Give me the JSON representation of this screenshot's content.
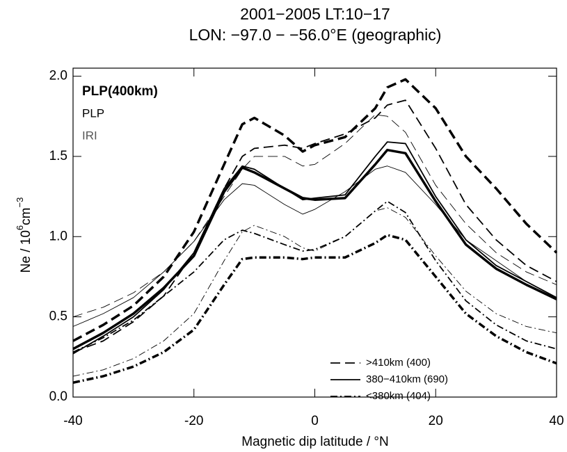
{
  "chart_data": {
    "type": "line",
    "title": "2001−2005   LT:10−17",
    "subtitle": "LON: −97.0 − −56.0°E (geographic)",
    "xlabel": "Magnetic dip latitude / °N",
    "ylabel": [
      "Ne / 10",
      "6",
      "cm",
      "−3"
    ],
    "x": [
      -40,
      -35,
      -30,
      -25,
      -20,
      -15,
      -12,
      -10,
      -5,
      -2,
      0,
      5,
      10,
      12,
      15,
      20,
      25,
      30,
      35,
      40
    ],
    "xlim": [
      -40,
      40
    ],
    "xticks": [
      -40,
      -20,
      0,
      20,
      40
    ],
    "ylim": [
      0,
      2.05
    ],
    "yticks": [
      {
        "value": 0,
        "label": "0.0"
      },
      {
        "value": 0.5,
        "label": "0.5"
      },
      {
        "value": 1,
        "label": "1.0"
      },
      {
        "value": 1.5,
        "label": "1.5"
      },
      {
        "value": 2,
        "label": "2.0"
      }
    ],
    "color": "#000000",
    "weight_legend": [
      {
        "label": "PLP(400km)",
        "width": 3.5,
        "bold": true,
        "color": "#000000"
      },
      {
        "label": "PLP",
        "width": 1.8,
        "bold": false,
        "color": "#000000"
      },
      {
        "label": "IRI",
        "width": 0.9,
        "bold": false,
        "color": "#555555"
      }
    ],
    "style_legend": [
      {
        "label": ">410km (400)",
        "dash": "14 7"
      },
      {
        "label": "380−410km (690)",
        "dash": "none"
      },
      {
        "label": "<380km (404)",
        "dash": "10 4 2 4"
      }
    ],
    "series": [
      {
        "line_style": 0,
        "line_weight": 0,
        "values": [
          0.35,
          0.45,
          0.57,
          0.75,
          1.03,
          1.45,
          1.7,
          1.74,
          1.63,
          1.53,
          1.57,
          1.62,
          1.8,
          1.93,
          1.98,
          1.8,
          1.5,
          1.3,
          1.08,
          0.9
        ]
      },
      {
        "line_style": 0,
        "line_weight": 1,
        "values": [
          0.28,
          0.35,
          0.47,
          0.63,
          0.9,
          1.3,
          1.5,
          1.55,
          1.57,
          1.55,
          1.58,
          1.64,
          1.74,
          1.82,
          1.85,
          1.55,
          1.2,
          0.98,
          0.82,
          0.72
        ]
      },
      {
        "line_style": 0,
        "line_weight": 2,
        "values": [
          0.5,
          0.56,
          0.65,
          0.78,
          0.97,
          1.25,
          1.42,
          1.5,
          1.5,
          1.44,
          1.45,
          1.58,
          1.76,
          1.75,
          1.65,
          1.32,
          1.08,
          0.9,
          0.78,
          0.7
        ]
      },
      {
        "line_style": 1,
        "line_weight": 0,
        "values": [
          0.3,
          0.4,
          0.52,
          0.68,
          0.88,
          1.28,
          1.43,
          1.4,
          1.3,
          1.24,
          1.23,
          1.24,
          1.45,
          1.54,
          1.52,
          1.22,
          0.95,
          0.8,
          0.7,
          0.61
        ]
      },
      {
        "line_style": 1,
        "line_weight": 1,
        "values": [
          0.27,
          0.38,
          0.5,
          0.67,
          0.9,
          1.3,
          1.44,
          1.42,
          1.3,
          1.23,
          1.24,
          1.26,
          1.5,
          1.59,
          1.58,
          1.25,
          0.98,
          0.82,
          0.72,
          0.62
        ]
      },
      {
        "line_style": 1,
        "line_weight": 2,
        "values": [
          0.44,
          0.52,
          0.62,
          0.78,
          0.97,
          1.23,
          1.33,
          1.32,
          1.2,
          1.14,
          1.17,
          1.28,
          1.42,
          1.44,
          1.4,
          1.2,
          0.98,
          0.85,
          0.72,
          0.62
        ]
      },
      {
        "line_style": 2,
        "line_weight": 0,
        "values": [
          0.09,
          0.13,
          0.19,
          0.28,
          0.42,
          0.7,
          0.86,
          0.87,
          0.87,
          0.86,
          0.87,
          0.87,
          0.96,
          1.01,
          0.98,
          0.75,
          0.52,
          0.38,
          0.28,
          0.21
        ]
      },
      {
        "line_style": 2,
        "line_weight": 1,
        "values": [
          0.28,
          0.37,
          0.48,
          0.63,
          0.78,
          0.98,
          1.04,
          1.02,
          0.95,
          0.91,
          0.92,
          1.0,
          1.16,
          1.22,
          1.15,
          0.85,
          0.6,
          0.45,
          0.35,
          0.3
        ]
      },
      {
        "line_style": 2,
        "line_weight": 2,
        "values": [
          0.13,
          0.17,
          0.24,
          0.35,
          0.52,
          0.85,
          1.03,
          1.07,
          1.0,
          0.93,
          0.91,
          1.0,
          1.16,
          1.18,
          1.12,
          0.88,
          0.66,
          0.52,
          0.44,
          0.4
        ]
      }
    ]
  }
}
